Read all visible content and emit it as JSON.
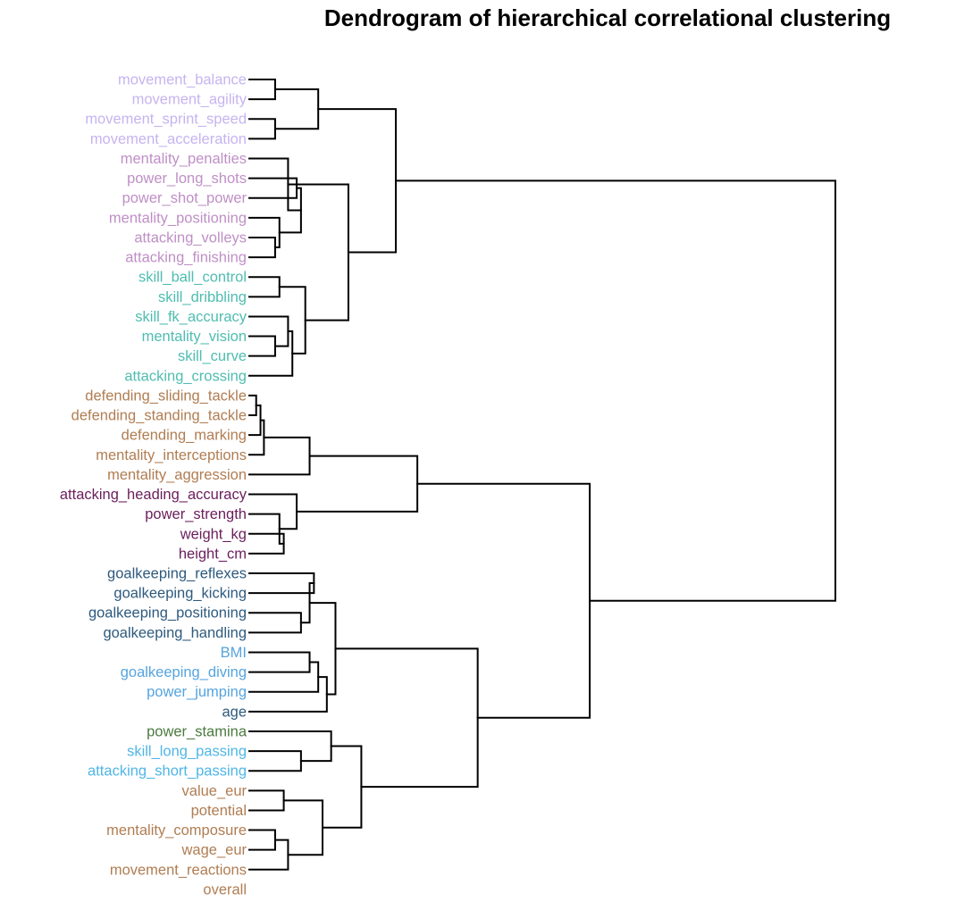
{
  "chart_data": {
    "type": "dendrogram",
    "title": "Dendrogram of hierarchical correlational clustering",
    "orientation": "leaves-left",
    "axis_visible": false,
    "leaves": [
      {
        "label": "movement_balance",
        "color": "#c5b5f0"
      },
      {
        "label": "movement_agility",
        "color": "#c5b5f0"
      },
      {
        "label": "movement_sprint_speed",
        "color": "#c5b5f0"
      },
      {
        "label": "movement_acceleration",
        "color": "#c5b5f0"
      },
      {
        "label": "mentality_penalties",
        "color": "#bf8fc6"
      },
      {
        "label": "power_long_shots",
        "color": "#bf8fc6"
      },
      {
        "label": "power_shot_power",
        "color": "#bf8fc6"
      },
      {
        "label": "mentality_positioning",
        "color": "#bf8fc6"
      },
      {
        "label": "attacking_volleys",
        "color": "#bf8fc6"
      },
      {
        "label": "attacking_finishing",
        "color": "#bf8fc6"
      },
      {
        "label": "skill_ball_control",
        "color": "#4fbdb0"
      },
      {
        "label": "skill_dribbling",
        "color": "#4fbdb0"
      },
      {
        "label": "skill_fk_accuracy",
        "color": "#4fbdb0"
      },
      {
        "label": "mentality_vision",
        "color": "#4fbdb0"
      },
      {
        "label": "skill_curve",
        "color": "#4fbdb0"
      },
      {
        "label": "attacking_crossing",
        "color": "#4fbdb0"
      },
      {
        "label": "defending_sliding_tackle",
        "color": "#b07d52"
      },
      {
        "label": "defending_standing_tackle",
        "color": "#b07d52"
      },
      {
        "label": "defending_marking",
        "color": "#b07d52"
      },
      {
        "label": "mentality_interceptions",
        "color": "#b07d52"
      },
      {
        "label": "mentality_aggression",
        "color": "#b07d52"
      },
      {
        "label": "attacking_heading_accuracy",
        "color": "#6b1e5c"
      },
      {
        "label": "power_strength",
        "color": "#6b1e5c"
      },
      {
        "label": "weight_kg",
        "color": "#6b1e5c"
      },
      {
        "label": "height_cm",
        "color": "#6b1e5c"
      },
      {
        "label": "goalkeeping_reflexes",
        "color": "#2e5a7e"
      },
      {
        "label": "goalkeeping_kicking",
        "color": "#2e5a7e"
      },
      {
        "label": "goalkeeping_positioning",
        "color": "#2e5a7e"
      },
      {
        "label": "goalkeeping_handling",
        "color": "#2e5a7e"
      },
      {
        "label": "BMI",
        "color": "#55a4de"
      },
      {
        "label": "goalkeeping_diving",
        "color": "#55a4de"
      },
      {
        "label": "power_jumping",
        "color": "#55a4de"
      },
      {
        "label": "age",
        "color": "#2e5a7e"
      },
      {
        "label": "power_stamina",
        "color": "#4a7a3e"
      },
      {
        "label": "skill_long_passing",
        "color": "#4fb6e6"
      },
      {
        "label": "attacking_short_passing",
        "color": "#4fb6e6"
      },
      {
        "label": "value_eur",
        "color": "#b07d52"
      },
      {
        "label": "potential",
        "color": "#b07d52"
      },
      {
        "label": "mentality_composure",
        "color": "#b07d52"
      },
      {
        "label": "wage_eur",
        "color": "#b07d52"
      },
      {
        "label": "movement_reactions",
        "color": "#b07d52"
      },
      {
        "label": "overall",
        "color": "#b07d52"
      }
    ],
    "merges": [
      {
        "left": 0,
        "right": 1,
        "height": 0.03
      },
      {
        "left": 2,
        "right": 3,
        "height": 0.03
      },
      {
        "left": 42,
        "right": 43,
        "height": 0.08
      },
      {
        "left": 8,
        "right": 9,
        "height": 0.03
      },
      {
        "left": 7,
        "right": 45,
        "height": 0.035
      },
      {
        "left": 5,
        "right": 6,
        "height": 0.055
      },
      {
        "left": 47,
        "right": 46,
        "height": 0.06
      },
      {
        "left": 4,
        "right": 48,
        "height": 0.045
      },
      {
        "left": 10,
        "right": 11,
        "height": 0.035
      },
      {
        "left": 13,
        "right": 14,
        "height": 0.03
      },
      {
        "left": 12,
        "right": 51,
        "height": 0.045
      },
      {
        "left": 52,
        "right": 15,
        "height": 0.05
      },
      {
        "left": 50,
        "right": 53,
        "height": 0.065
      },
      {
        "left": 49,
        "right": 54,
        "height": 0.115
      },
      {
        "left": 44,
        "right": 55,
        "height": 0.17
      },
      {
        "left": 16,
        "right": 17,
        "height": 0.008
      },
      {
        "left": 57,
        "right": 18,
        "height": 0.013
      },
      {
        "left": 58,
        "right": 19,
        "height": 0.017
      },
      {
        "left": 59,
        "right": 20,
        "height": 0.07
      },
      {
        "left": 23,
        "right": 24,
        "height": 0.04
      },
      {
        "left": 22,
        "right": 61,
        "height": 0.035
      },
      {
        "left": 21,
        "right": 62,
        "height": 0.055
      },
      {
        "left": 60,
        "right": 63,
        "height": 0.195
      },
      {
        "left": 25,
        "right": 26,
        "height": 0.075
      },
      {
        "left": 27,
        "right": 28,
        "height": 0.06
      },
      {
        "left": 65,
        "right": 66,
        "height": 0.07
      },
      {
        "left": 29,
        "right": 30,
        "height": 0.07
      },
      {
        "left": 68,
        "right": 31,
        "height": 0.08
      },
      {
        "left": 69,
        "right": 32,
        "height": 0.09
      },
      {
        "left": 67,
        "right": 70,
        "height": 0.1
      },
      {
        "left": 34,
        "right": 35,
        "height": 0.06
      },
      {
        "left": 33,
        "right": 72,
        "height": 0.095
      },
      {
        "left": 36,
        "right": 37,
        "height": 0.04
      },
      {
        "left": 38,
        "right": 39,
        "height": 0.03
      },
      {
        "left": 75,
        "right": 40,
        "height": 0.045
      },
      {
        "left": 74,
        "right": 76,
        "height": 0.085
      },
      {
        "left": 73,
        "right": 77,
        "height": 0.13
      },
      {
        "left": 71,
        "right": 78,
        "height": 0.265
      },
      {
        "left": 64,
        "right": 79,
        "height": 0.395
      },
      {
        "left": 56,
        "right": 80,
        "height": 0.68
      }
    ]
  }
}
